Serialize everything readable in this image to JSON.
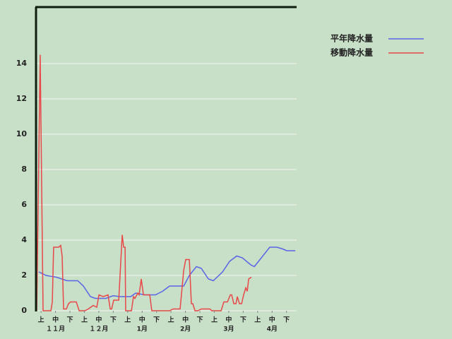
{
  "chart_data": {
    "type": "line",
    "xlim": [
      0,
      18
    ],
    "xticks": [
      {
        "value": 0.3,
        "label": "上"
      },
      {
        "value": 1.3,
        "label": "中"
      },
      {
        "value": 2.3,
        "label": "下"
      },
      {
        "value": 3.3,
        "label": "上"
      },
      {
        "value": 4.3,
        "label": "中"
      },
      {
        "value": 5.3,
        "label": "下"
      },
      {
        "value": 6.3,
        "label": "上"
      },
      {
        "value": 7.3,
        "label": "中"
      },
      {
        "value": 8.3,
        "label": "下"
      },
      {
        "value": 9.3,
        "label": "上"
      },
      {
        "value": 10.3,
        "label": "中"
      },
      {
        "value": 11.3,
        "label": "下"
      },
      {
        "value": 12.3,
        "label": "上"
      },
      {
        "value": 13.3,
        "label": "中"
      },
      {
        "value": 14.3,
        "label": "下"
      },
      {
        "value": 15.3,
        "label": "上"
      },
      {
        "value": 16.3,
        "label": "中"
      },
      {
        "value": 17.3,
        "label": "下"
      }
    ],
    "months": [
      {
        "value": 1.3,
        "label": "１１月"
      },
      {
        "value": 4.3,
        "label": "１２月"
      },
      {
        "value": 7.3,
        "label": "1月"
      },
      {
        "value": 10.3,
        "label": "2月"
      },
      {
        "value": 13.3,
        "label": "3月"
      },
      {
        "value": 16.3,
        "label": "4月"
      }
    ],
    "ylim": [
      0,
      17.2
    ],
    "yticks": [
      0,
      2,
      4,
      6,
      8,
      10,
      12,
      14
    ],
    "grid": true,
    "series": [
      {
        "name": "平年降水量",
        "color": "#5a64e6",
        "x": [
          0.15,
          0.64,
          1.37,
          2.1,
          2.84,
          3.23,
          3.72,
          4.06,
          4.79,
          5.28,
          5.77,
          6.51,
          6.85,
          7.49,
          8.22,
          8.71,
          9.2,
          10.18,
          10.57,
          11.06,
          11.4,
          11.89,
          12.23,
          12.87,
          13.36,
          13.85,
          14.24,
          14.82,
          15.07,
          15.56,
          16.14,
          16.63,
          17.03,
          17.32,
          17.91
        ],
        "values": [
          2.2,
          2.0,
          1.9,
          1.7,
          1.7,
          1.4,
          0.8,
          0.7,
          0.7,
          0.85,
          0.8,
          0.8,
          1.0,
          0.9,
          0.9,
          1.1,
          1.4,
          1.4,
          2.0,
          2.5,
          2.4,
          1.8,
          1.7,
          2.2,
          2.8,
          3.1,
          3.0,
          2.6,
          2.5,
          3.0,
          3.6,
          3.6,
          3.5,
          3.4,
          3.4
        ]
      },
      {
        "name": "移動降水量",
        "color": "#e84848",
        "x": [
          0,
          0.24,
          0.44,
          0.98,
          1.08,
          1.17,
          1.52,
          1.66,
          1.76,
          1.86,
          2.05,
          2.2,
          2.35,
          2.74,
          2.94,
          3.33,
          3.57,
          3.91,
          4.16,
          4.31,
          4.6,
          4.94,
          5.09,
          5.19,
          5.33,
          5.68,
          5.92,
          6.02,
          6.12,
          6.16,
          6.56,
          6.7,
          6.8,
          7.0,
          7.09,
          7.24,
          7.39,
          7.83,
          7.97,
          9.2,
          9.44,
          9.93,
          10.18,
          10.32,
          10.57,
          10.71,
          10.81,
          10.96,
          11.15,
          11.4,
          11.99,
          12.13,
          12.77,
          12.96,
          13.21,
          13.41,
          13.5,
          13.65,
          13.8,
          13.89,
          14.04,
          14.19,
          14.33,
          14.48,
          14.58,
          14.68,
          14.87
        ],
        "values": [
          0,
          14.5,
          0,
          0,
          0.5,
          3.6,
          3.6,
          3.7,
          3.1,
          0.1,
          0.1,
          0.4,
          0.5,
          0.5,
          0,
          0,
          0.1,
          0.3,
          0.2,
          0.9,
          0.8,
          0.9,
          0.1,
          0.1,
          0.6,
          0.6,
          4.3,
          3.6,
          3.6,
          0,
          0,
          0.8,
          0.7,
          1.0,
          0.9,
          1.8,
          0.9,
          0.9,
          0,
          0,
          0.1,
          0.1,
          2.3,
          2.9,
          2.9,
          0.4,
          0.4,
          0,
          0,
          0.1,
          0.1,
          0,
          0,
          0.5,
          0.5,
          0.9,
          0.9,
          0.4,
          0.4,
          0.8,
          0.4,
          0.4,
          0.9,
          1.3,
          1.1,
          1.8,
          1.9
        ]
      }
    ]
  }
}
